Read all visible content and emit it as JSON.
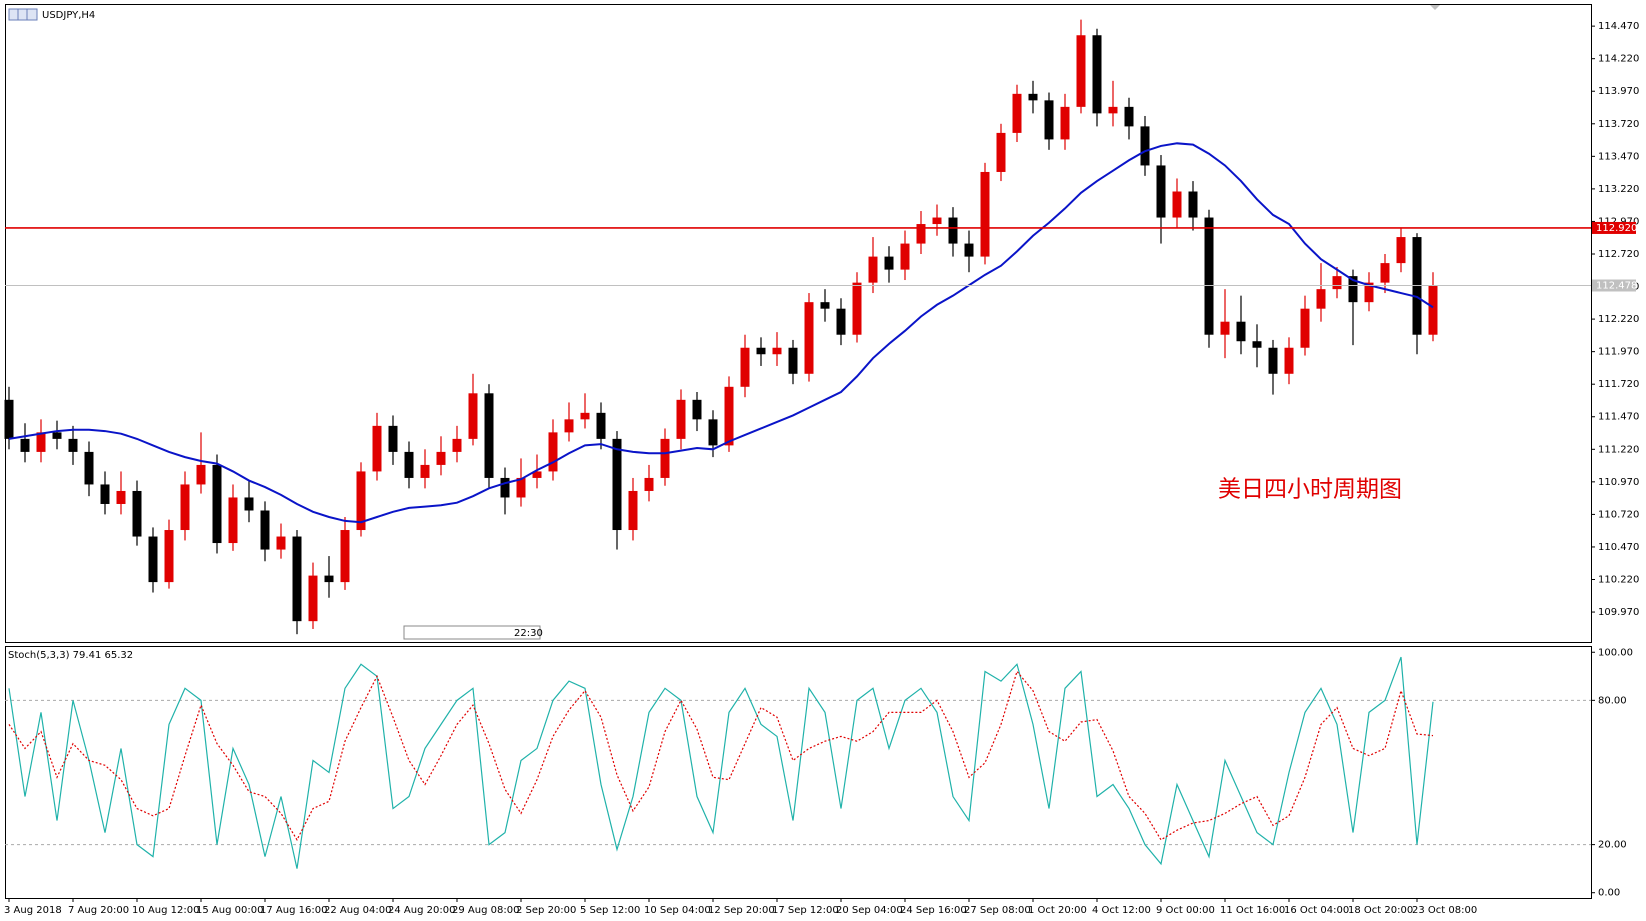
{
  "chart_data": [
    {
      "type": "candlestick",
      "title": "USDJPY,H4",
      "categories": [
        "3 Aug 2018",
        null,
        null,
        null,
        "7 Aug 20:00",
        null,
        null,
        null,
        "10 Aug 12:00",
        null,
        null,
        null,
        "15 Aug 00:00",
        null,
        null,
        null,
        "17 Aug 16:00",
        null,
        null,
        null,
        "22 Aug 04:00",
        null,
        null,
        null,
        "24 Aug 20:00",
        null,
        null,
        null,
        "29 Aug 08:00",
        null,
        null,
        null,
        "2 Sep 20:00",
        null,
        null,
        null,
        "5 Sep 12:00",
        null,
        null,
        null,
        "10 Sep 04:00",
        null,
        null,
        null,
        "12 Sep 20:00",
        null,
        null,
        null,
        "17 Sep 12:00",
        null,
        null,
        null,
        "20 Sep 04:00",
        null,
        null,
        null,
        "24 Sep 16:00",
        null,
        null,
        null,
        "27 Sep 08:00",
        null,
        null,
        null,
        "1 Oct 20:00",
        null,
        null,
        null,
        "4 Oct 12:00",
        null,
        null,
        null,
        "9 Oct 00:00",
        null,
        null,
        null,
        "11 Oct 16:00",
        null,
        null,
        null,
        "16 Oct 04:00",
        null,
        null,
        null,
        "18 Oct 20:00",
        null,
        null,
        null,
        "23 Oct 08:00",
        null
      ],
      "open": [
        111.6,
        111.3,
        111.2,
        111.35,
        111.3,
        111.2,
        110.95,
        110.8,
        110.9,
        110.55,
        110.2,
        110.6,
        110.95,
        111.1,
        110.5,
        110.85,
        110.75,
        110.45,
        110.55,
        109.9,
        110.25,
        110.2,
        110.6,
        111.05,
        111.4,
        111.2,
        111.0,
        111.1,
        111.2,
        111.3,
        111.65,
        111.0,
        110.85,
        111.0,
        111.05,
        111.35,
        111.45,
        111.5,
        111.3,
        110.6,
        110.9,
        111.0,
        111.3,
        111.6,
        111.45,
        111.25,
        111.7,
        112.0,
        111.95,
        112.0,
        111.8,
        112.35,
        112.3,
        112.1,
        112.5,
        112.7,
        112.6,
        112.8,
        112.95,
        113.0,
        112.8,
        112.7,
        113.35,
        113.65,
        113.95,
        113.9,
        113.6,
        113.85,
        114.4,
        113.8,
        113.85,
        113.7,
        113.4,
        113.0,
        113.2,
        113.0,
        112.1,
        112.2,
        112.05,
        112.0,
        111.8,
        112.0,
        112.3,
        112.45,
        112.55,
        112.35,
        112.5,
        112.65,
        112.85,
        112.1
      ],
      "high": [
        111.7,
        111.42,
        111.45,
        111.44,
        111.4,
        111.28,
        111.05,
        111.05,
        110.98,
        110.62,
        110.68,
        111.05,
        111.35,
        111.18,
        110.95,
        110.98,
        110.82,
        110.65,
        110.6,
        110.35,
        110.4,
        110.7,
        111.12,
        111.5,
        111.48,
        111.28,
        111.22,
        111.32,
        111.4,
        111.8,
        111.72,
        111.08,
        111.15,
        111.18,
        111.45,
        111.58,
        111.65,
        111.58,
        111.36,
        111.0,
        111.1,
        111.38,
        111.68,
        111.66,
        111.52,
        111.78,
        112.1,
        112.08,
        112.12,
        112.06,
        112.42,
        112.45,
        112.38,
        112.58,
        112.85,
        112.78,
        112.9,
        113.05,
        113.1,
        113.08,
        112.9,
        113.42,
        113.72,
        114.02,
        114.05,
        113.96,
        113.95,
        114.52,
        114.45,
        114.05,
        113.92,
        113.78,
        113.48,
        113.3,
        113.28,
        113.06,
        112.45,
        112.4,
        112.18,
        112.06,
        112.08,
        112.4,
        112.65,
        112.62,
        112.6,
        112.58,
        112.72,
        112.92,
        112.88,
        112.58
      ],
      "low": [
        111.22,
        111.12,
        111.12,
        111.22,
        111.1,
        110.86,
        110.72,
        110.72,
        110.48,
        110.12,
        110.15,
        110.52,
        110.88,
        110.42,
        110.44,
        110.66,
        110.36,
        110.38,
        109.8,
        109.84,
        110.08,
        110.14,
        110.55,
        110.98,
        111.1,
        110.92,
        110.92,
        111.02,
        111.12,
        111.25,
        110.92,
        110.72,
        110.78,
        110.92,
        110.98,
        111.28,
        111.38,
        111.22,
        110.45,
        110.52,
        110.82,
        110.94,
        111.22,
        111.36,
        111.16,
        111.2,
        111.62,
        111.86,
        111.86,
        111.72,
        111.74,
        112.2,
        112.02,
        112.04,
        112.42,
        112.5,
        112.52,
        112.72,
        112.86,
        112.7,
        112.58,
        112.64,
        113.28,
        113.58,
        113.8,
        113.52,
        113.52,
        113.8,
        113.7,
        113.7,
        113.6,
        113.32,
        112.8,
        112.92,
        112.9,
        112.0,
        111.92,
        111.95,
        111.85,
        111.64,
        111.72,
        111.94,
        112.2,
        112.38,
        112.02,
        112.28,
        112.42,
        112.58,
        111.95,
        112.05
      ],
      "close": [
        111.3,
        111.2,
        111.35,
        111.3,
        111.2,
        110.95,
        110.8,
        110.9,
        110.55,
        110.2,
        110.6,
        110.95,
        111.1,
        110.5,
        110.85,
        110.75,
        110.45,
        110.55,
        109.9,
        110.25,
        110.2,
        110.6,
        111.05,
        111.4,
        111.2,
        111.0,
        111.1,
        111.2,
        111.3,
        111.65,
        111.0,
        110.85,
        111.0,
        111.05,
        111.35,
        111.45,
        111.5,
        111.3,
        110.6,
        110.9,
        111.0,
        111.3,
        111.6,
        111.45,
        111.25,
        111.7,
        112.0,
        111.95,
        112.0,
        111.8,
        112.35,
        112.3,
        112.1,
        112.5,
        112.7,
        112.6,
        112.8,
        112.95,
        113.0,
        112.8,
        112.7,
        113.35,
        113.65,
        113.95,
        113.9,
        113.6,
        113.85,
        114.4,
        113.8,
        113.85,
        113.7,
        113.4,
        113.0,
        113.2,
        113.0,
        112.1,
        112.2,
        112.05,
        112.0,
        111.8,
        112.0,
        112.3,
        112.45,
        112.55,
        112.35,
        112.5,
        112.65,
        112.85,
        112.1,
        112.48
      ],
      "color_up": "#e00000",
      "color_down": "#000000",
      "moving_average": {
        "color": "#0a14c8",
        "values": [
          111.3,
          111.32,
          111.34,
          111.36,
          111.37,
          111.37,
          111.36,
          111.34,
          111.3,
          111.25,
          111.2,
          111.16,
          111.13,
          111.11,
          111.05,
          110.98,
          110.93,
          110.87,
          110.8,
          110.74,
          110.7,
          110.67,
          110.66,
          110.7,
          110.74,
          110.77,
          110.78,
          110.79,
          110.81,
          110.86,
          110.92,
          110.96,
          110.99,
          111.06,
          111.12,
          111.19,
          111.25,
          111.26,
          111.22,
          111.2,
          111.19,
          111.19,
          111.21,
          111.23,
          111.22,
          111.28,
          111.33,
          111.38,
          111.43,
          111.48,
          111.54,
          111.6,
          111.66,
          111.78,
          111.92,
          112.03,
          112.13,
          112.24,
          112.33,
          112.4,
          112.48,
          112.56,
          112.63,
          112.74,
          112.86,
          112.96,
          113.07,
          113.19,
          113.28,
          113.36,
          113.44,
          113.51,
          113.55,
          113.57,
          113.56,
          113.49,
          113.4,
          113.28,
          113.14,
          113.02,
          112.95,
          112.8,
          112.68,
          112.6,
          112.52,
          112.48,
          112.45,
          112.42,
          112.39,
          112.31
        ]
      },
      "hlines": [
        {
          "value": 112.92,
          "label": "112.920",
          "color": "#e00000"
        },
        {
          "value": 112.478,
          "label": "112.478",
          "color": "#c0c0c0"
        }
      ],
      "ylim": [
        109.74,
        114.64
      ],
      "yticks": [
        {
          "value": 109.97,
          "label": "109.970"
        },
        {
          "value": 110.22,
          "label": "110.220"
        },
        {
          "value": 110.47,
          "label": "110.470"
        },
        {
          "value": 110.72,
          "label": "110.720"
        },
        {
          "value": 110.97,
          "label": "110.970"
        },
        {
          "value": 111.22,
          "label": "111.220"
        },
        {
          "value": 111.47,
          "label": "111.470"
        },
        {
          "value": 111.72,
          "label": "111.720"
        },
        {
          "value": 111.97,
          "label": "111.970"
        },
        {
          "value": 112.22,
          "label": "112.220"
        },
        {
          "value": 112.47,
          "label": "112.470"
        },
        {
          "value": 112.72,
          "label": "112.720"
        },
        {
          "value": 112.97,
          "label": "112.970"
        },
        {
          "value": 113.22,
          "label": "113.220"
        },
        {
          "value": 113.47,
          "label": "113.470"
        },
        {
          "value": 113.72,
          "label": "113.720"
        },
        {
          "value": 113.97,
          "label": "113.970"
        },
        {
          "value": 114.22,
          "label": "114.220"
        },
        {
          "value": 114.47,
          "label": "114.470"
        }
      ],
      "annotation": "美日四小时周期图",
      "annotation_color": "#e00000",
      "scroll_label": "22:30"
    },
    {
      "type": "stochastic",
      "title": "Stoch(5,3,3)",
      "series": [
        {
          "color": "#20b2aa",
          "dashed": false,
          "values": [
            85,
            40,
            75,
            30,
            80,
            55,
            25,
            60,
            20,
            15,
            70,
            85,
            80,
            20,
            60,
            45,
            15,
            40,
            10,
            55,
            50,
            85,
            95,
            90,
            35,
            40,
            60,
            70,
            80,
            85,
            20,
            25,
            55,
            60,
            80,
            88,
            85,
            45,
            18,
            40,
            75,
            85,
            80,
            40,
            25,
            75,
            85,
            70,
            65,
            30,
            85,
            75,
            35,
            80,
            85,
            60,
            80,
            85,
            75,
            40,
            30,
            92,
            88,
            95,
            70,
            35,
            85,
            92,
            40,
            45,
            35,
            20,
            12,
            45,
            30,
            15,
            55,
            40,
            25,
            20,
            50,
            75,
            85,
            70,
            25,
            75,
            80,
            98,
            20,
            79.41
          ]
        },
        {
          "color": "#e00000",
          "dashed": true,
          "values": [
            70,
            60,
            67,
            48,
            62,
            55,
            53,
            47,
            35,
            32,
            35,
            57,
            78,
            62,
            53,
            42,
            40,
            33,
            22,
            35,
            38,
            63,
            77,
            90,
            73,
            55,
            45,
            57,
            70,
            78,
            62,
            43,
            33,
            47,
            65,
            76,
            84,
            73,
            49,
            34,
            44,
            67,
            80,
            68,
            48,
            47,
            62,
            77,
            73,
            55,
            60,
            63,
            65,
            63,
            67,
            75,
            75,
            75,
            80,
            67,
            48,
            54,
            70,
            92,
            84,
            67,
            63,
            71,
            72,
            59,
            40,
            33,
            22,
            26,
            29,
            30,
            33,
            37,
            40,
            28,
            32,
            48,
            70,
            77,
            60,
            57,
            60,
            84,
            66,
            65.32
          ]
        }
      ],
      "levels": [
        20,
        80
      ],
      "ylim": [
        -2.2,
        102.6
      ],
      "yticks": [
        {
          "value": 0,
          "label": "0.00"
        },
        {
          "value": 20,
          "label": "20.00"
        },
        {
          "value": 80,
          "label": "80.00"
        },
        {
          "value": 100,
          "label": "100.00"
        }
      ]
    }
  ]
}
